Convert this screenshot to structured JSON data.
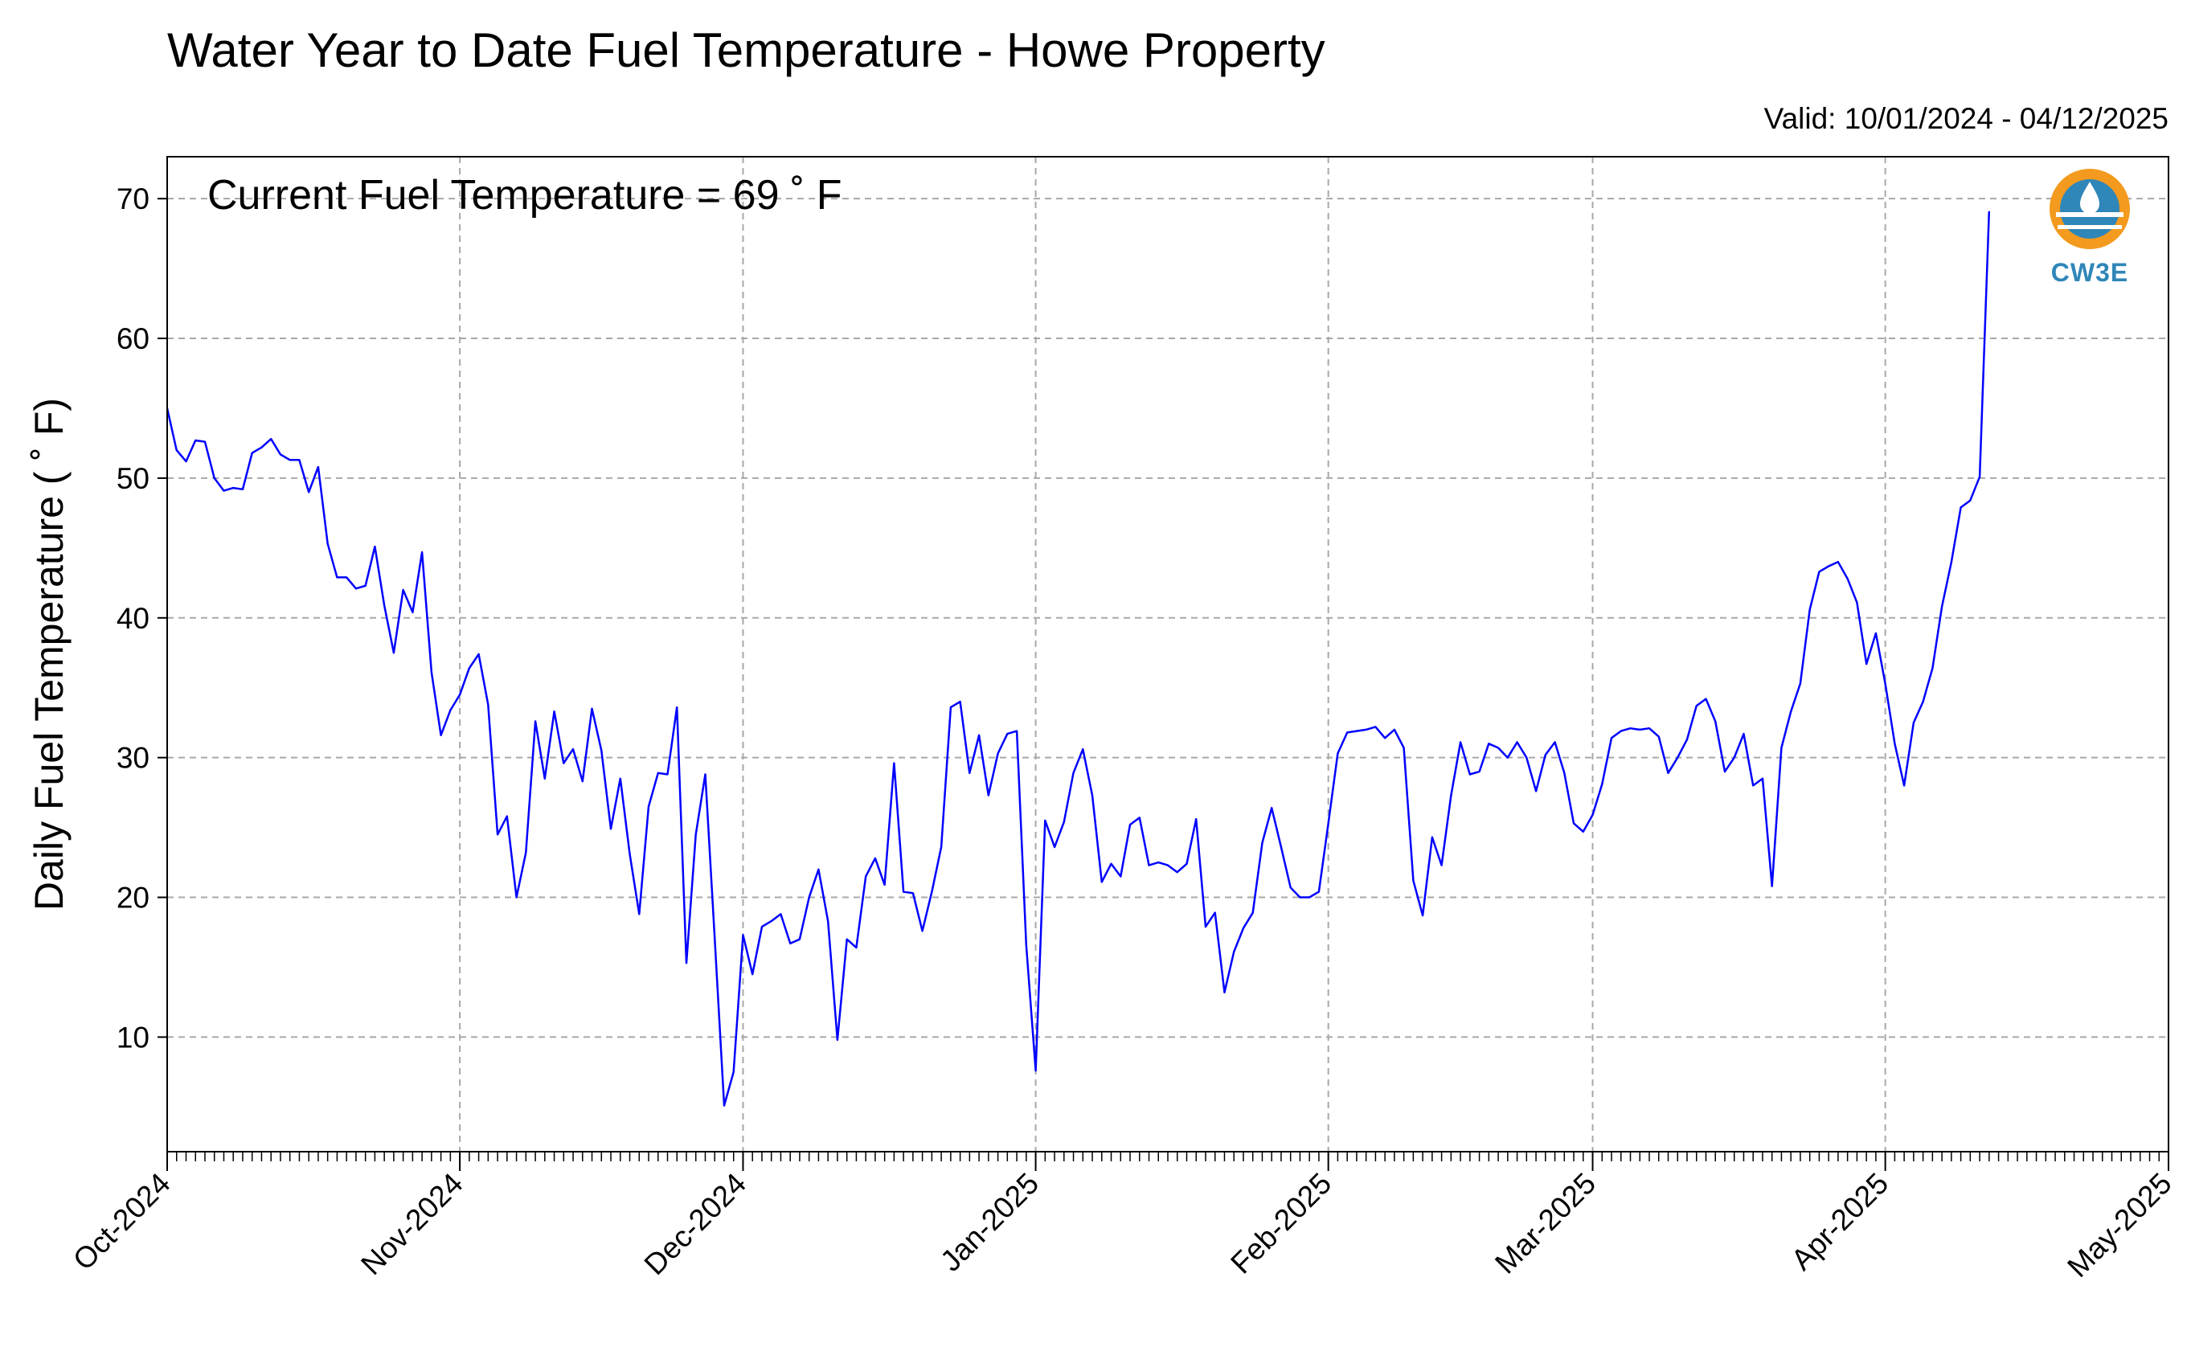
{
  "chart_data": {
    "type": "line",
    "title": "Water Year to Date Fuel Temperature - Howe Property",
    "subtitle": "Valid: 10/01/2024 - 04/12/2025",
    "annotation": "Current Fuel Temperature = 69 ˚ F",
    "ylabel": "Daily Fuel Temperature ( ˚ F)",
    "xlabel": "",
    "logo_text": "CW3E",
    "grid": true,
    "line_color": "#0000ff",
    "ylim": [
      1.8,
      73
    ],
    "xlim": [
      "2024-10-01",
      "2025-05-01"
    ],
    "y_ticks": [
      10,
      20,
      30,
      40,
      50,
      60,
      70
    ],
    "x_tick_dates": [
      "2024-10-01",
      "2024-11-01",
      "2024-12-01",
      "2025-01-01",
      "2025-02-01",
      "2025-03-01",
      "2025-04-01",
      "2025-05-01"
    ],
    "x_tick_labels": [
      "Oct-2024",
      "Nov-2024",
      "Dec-2024",
      "Jan-2025",
      "Feb-2025",
      "Mar-2025",
      "Apr-2025",
      "May-2025"
    ],
    "series": [
      {
        "x_start": "2024-10-01",
        "x_step": "1 day",
        "values": [
          55.0,
          52.0,
          51.2,
          52.7,
          52.6,
          50.0,
          49.1,
          49.3,
          49.2,
          51.8,
          52.2,
          52.8,
          51.7,
          51.3,
          51.3,
          49.0,
          50.8,
          45.3,
          42.9,
          42.9,
          42.1,
          42.3,
          45.1,
          40.9,
          37.5,
          42.0,
          40.4,
          44.7,
          36.1,
          31.6,
          33.4,
          34.5,
          36.4,
          37.4,
          33.8,
          24.5,
          25.8,
          20.0,
          23.2,
          32.6,
          28.5,
          33.3,
          29.6,
          30.6,
          28.3,
          33.5,
          30.5,
          24.9,
          28.5,
          23.1,
          18.8,
          26.5,
          28.9,
          28.8,
          33.6,
          15.3,
          24.5,
          28.8,
          17.1,
          5.1,
          7.5,
          17.3,
          14.5,
          17.9,
          18.3,
          18.8,
          16.7,
          17.0,
          20.0,
          22.0,
          18.3,
          9.8,
          17.0,
          16.4,
          21.5,
          22.8,
          20.9,
          29.6,
          20.4,
          20.3,
          17.6,
          20.4,
          23.6,
          33.6,
          34.0,
          28.9,
          31.6,
          27.3,
          30.3,
          31.7,
          31.9,
          16.6,
          7.6,
          25.5,
          23.6,
          25.4,
          28.9,
          30.6,
          27.3,
          21.1,
          22.4,
          21.5,
          25.2,
          25.7,
          22.3,
          22.5,
          22.3,
          21.8,
          22.4,
          25.6,
          17.9,
          18.9,
          13.2,
          16.1,
          17.8,
          18.9,
          23.9,
          26.4,
          23.6,
          20.7,
          20.0,
          20.0,
          20.4,
          25.3,
          30.3,
          31.8,
          31.9,
          32.0,
          32.2,
          31.4,
          32.0,
          30.7,
          21.2,
          18.7,
          24.3,
          22.3,
          27.3,
          31.1,
          28.8,
          29.0,
          31.0,
          30.7,
          30.0,
          31.1,
          30.0,
          27.6,
          30.2,
          31.1,
          28.9,
          25.3,
          24.7,
          25.9,
          28.1,
          31.4,
          31.9,
          32.1,
          32.0,
          32.1,
          31.5,
          28.9,
          30.0,
          31.3,
          33.7,
          34.2,
          32.6,
          29.0,
          30.0,
          31.7,
          28.0,
          28.5,
          20.8,
          30.7,
          33.3,
          35.3,
          40.6,
          43.3,
          43.7,
          44.0,
          42.8,
          41.1,
          36.7,
          38.9,
          35.3,
          31.0,
          28.0,
          32.5,
          34.0,
          36.4,
          40.8,
          44.0,
          47.9,
          48.4,
          50.1,
          69.1
        ]
      }
    ]
  }
}
